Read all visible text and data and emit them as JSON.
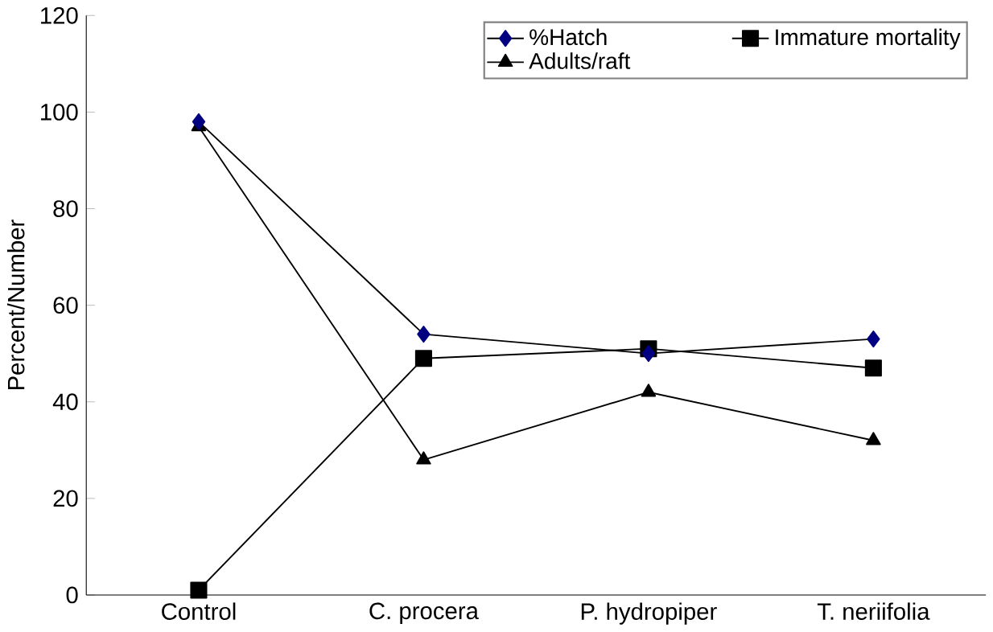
{
  "chart_data": {
    "type": "line",
    "ylabel": "Percent/Number",
    "categories": [
      "Control",
      "C. procera",
      "P. hydropiper",
      "T. neriifolia"
    ],
    "series": [
      {
        "name": "%Hatch",
        "color": "#000080",
        "marker": "diamond",
        "values": [
          98,
          54,
          50,
          53
        ]
      },
      {
        "name": "Immature mortality",
        "color": "#000000",
        "marker": "square",
        "values": [
          1,
          49,
          51,
          47
        ]
      },
      {
        "name": "Adults/raft",
        "color": "#000000",
        "marker": "triangle",
        "values": [
          97,
          28,
          42,
          32
        ]
      }
    ],
    "ylim": [
      0,
      120
    ],
    "yticks": [
      0,
      20,
      40,
      60,
      80,
      100,
      120
    ],
    "grid": false,
    "legend": "top right",
    "line_style": "solid"
  }
}
